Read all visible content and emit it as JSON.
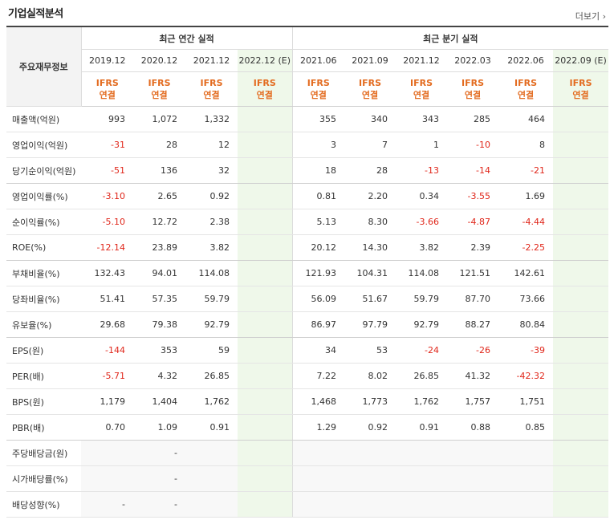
{
  "header": {
    "title": "기업실적분석",
    "more_label": "더보기"
  },
  "table": {
    "corner_label": "주요재무정보",
    "group_annual": "최근 연간 실적",
    "group_quarter": "최근 분기 실적",
    "periods": [
      "2019.12",
      "2020.12",
      "2021.12",
      "2022.12 (E)",
      "2021.06",
      "2021.09",
      "2021.12",
      "2022.03",
      "2022.06",
      "2022.09 (E)"
    ],
    "basis_top": "IFRS",
    "basis_bottom": "연결",
    "rows": [
      {
        "label": "매출액(억원)",
        "values": [
          "993",
          "1,072",
          "1,332",
          "",
          "355",
          "340",
          "343",
          "285",
          "464",
          ""
        ]
      },
      {
        "label": "영업이익(억원)",
        "values": [
          "-31",
          "28",
          "12",
          "",
          "3",
          "7",
          "1",
          "-10",
          "8",
          ""
        ]
      },
      {
        "label": "당기순이익(억원)",
        "values": [
          "-51",
          "136",
          "32",
          "",
          "18",
          "28",
          "-13",
          "-14",
          "-21",
          ""
        ]
      },
      {
        "label": "영업이익률(%)",
        "values": [
          "-3.10",
          "2.65",
          "0.92",
          "",
          "0.81",
          "2.20",
          "0.34",
          "-3.55",
          "1.69",
          ""
        ]
      },
      {
        "label": "순이익률(%)",
        "values": [
          "-5.10",
          "12.72",
          "2.38",
          "",
          "5.13",
          "8.30",
          "-3.66",
          "-4.87",
          "-4.44",
          ""
        ]
      },
      {
        "label": "ROE(%)",
        "values": [
          "-12.14",
          "23.89",
          "3.82",
          "",
          "20.12",
          "14.30",
          "3.82",
          "2.39",
          "-2.25",
          ""
        ]
      },
      {
        "label": "부채비율(%)",
        "values": [
          "132.43",
          "94.01",
          "114.08",
          "",
          "121.93",
          "104.31",
          "114.08",
          "121.51",
          "142.61",
          ""
        ]
      },
      {
        "label": "당좌비율(%)",
        "values": [
          "51.41",
          "57.35",
          "59.79",
          "",
          "56.09",
          "51.67",
          "59.79",
          "87.70",
          "73.66",
          ""
        ]
      },
      {
        "label": "유보율(%)",
        "values": [
          "29.68",
          "79.38",
          "92.79",
          "",
          "86.97",
          "97.79",
          "92.79",
          "88.27",
          "80.84",
          ""
        ]
      },
      {
        "label": "EPS(원)",
        "values": [
          "-144",
          "353",
          "59",
          "",
          "34",
          "53",
          "-24",
          "-26",
          "-39",
          ""
        ]
      },
      {
        "label": "PER(배)",
        "values": [
          "-5.71",
          "4.32",
          "26.85",
          "",
          "7.22",
          "8.02",
          "26.85",
          "41.32",
          "-42.32",
          ""
        ]
      },
      {
        "label": "BPS(원)",
        "values": [
          "1,179",
          "1,404",
          "1,762",
          "",
          "1,468",
          "1,773",
          "1,762",
          "1,757",
          "1,751",
          ""
        ]
      },
      {
        "label": "PBR(배)",
        "values": [
          "0.70",
          "1.09",
          "0.91",
          "",
          "1.29",
          "0.92",
          "0.91",
          "0.88",
          "0.85",
          ""
        ]
      },
      {
        "label": "주당배당금(원)",
        "values": [
          "",
          "-",
          "",
          "",
          "",
          "",
          "",
          "",
          "",
          ""
        ]
      },
      {
        "label": "시가배당률(%)",
        "values": [
          "",
          "-",
          "",
          "",
          "",
          "",
          "",
          "",
          "",
          ""
        ]
      },
      {
        "label": "배당성향(%)",
        "values": [
          "-",
          "-",
          "",
          "",
          "",
          "",
          "",
          "",
          "",
          ""
        ]
      }
    ]
  },
  "colors": {
    "negative": "#e0261a",
    "basis": "#e36b1f",
    "estimate_bg": "#eff8ea"
  }
}
